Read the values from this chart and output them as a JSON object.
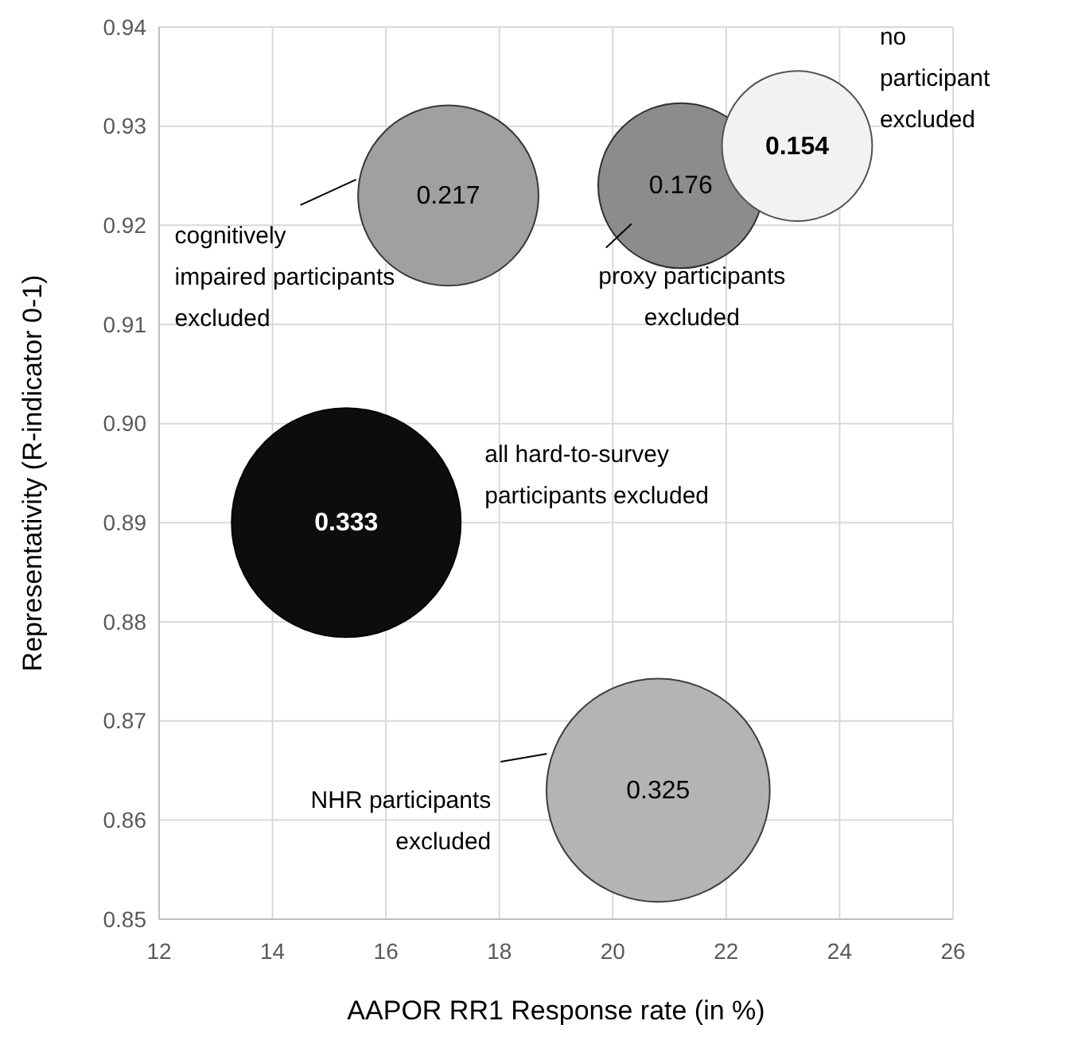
{
  "chart_data": {
    "type": "bubble",
    "xlabel": "AAPOR RR1 Response rate (in %)",
    "ylabel": "Representativity (R-indicator 0-1)",
    "xlim": [
      12,
      26
    ],
    "xticks": [
      12,
      14,
      16,
      18,
      20,
      22,
      24,
      26
    ],
    "ylim": [
      0.85,
      0.94
    ],
    "yticks": [
      {
        "value": 0.85,
        "label": "0.85"
      },
      {
        "value": 0.86,
        "label": "0.86"
      },
      {
        "value": 0.87,
        "label": "0.87"
      },
      {
        "value": 0.88,
        "label": "0.88"
      },
      {
        "value": 0.89,
        "label": "0.89"
      },
      {
        "value": 0.9,
        "label": "0.90"
      },
      {
        "value": 0.91,
        "label": "0.91"
      },
      {
        "value": 0.92,
        "label": "0.92"
      },
      {
        "value": 0.93,
        "label": "0.93"
      },
      {
        "value": 0.94,
        "label": "0.94"
      }
    ],
    "grid": true,
    "series": [
      {
        "color": "#a0a0a0",
        "x": [
          17.1
        ],
        "values": [
          0.923
        ],
        "sizes": [
          0.62
        ]
      },
      {
        "color": "#8c8c8c",
        "x": [
          21.2
        ],
        "values": [
          0.924
        ],
        "sizes": [
          0.52
        ]
      },
      {
        "color": "#f2f2f2",
        "x": [
          23.25
        ],
        "values": [
          0.928
        ],
        "sizes": [
          0.43
        ]
      },
      {
        "color": "#0d0d0d",
        "x": [
          15.3
        ],
        "values": [
          0.89
        ],
        "sizes": [
          1
        ]
      },
      {
        "color": "#b4b4b4",
        "x": [
          20.8
        ],
        "values": [
          0.863
        ],
        "sizes": [
          0.95
        ]
      }
    ],
    "annotations": [
      "cognitively impaired participants excluded",
      "proxy participants excluded",
      "no participant excluded",
      "all hard-to-survey participants excluded",
      "NHR participants excluded",
      {
        "text": "0.217",
        "x": 17.1,
        "y": 0.923
      },
      {
        "text": "0.176",
        "x": 21.2,
        "y": 0.924
      },
      {
        "text": "0.154",
        "x": 23.25,
        "y": 0.928
      },
      {
        "text": "0.333",
        "x": 15.3,
        "y": 0.89
      },
      {
        "text": "0.325",
        "x": 20.8,
        "y": 0.863
      }
    ]
  }
}
